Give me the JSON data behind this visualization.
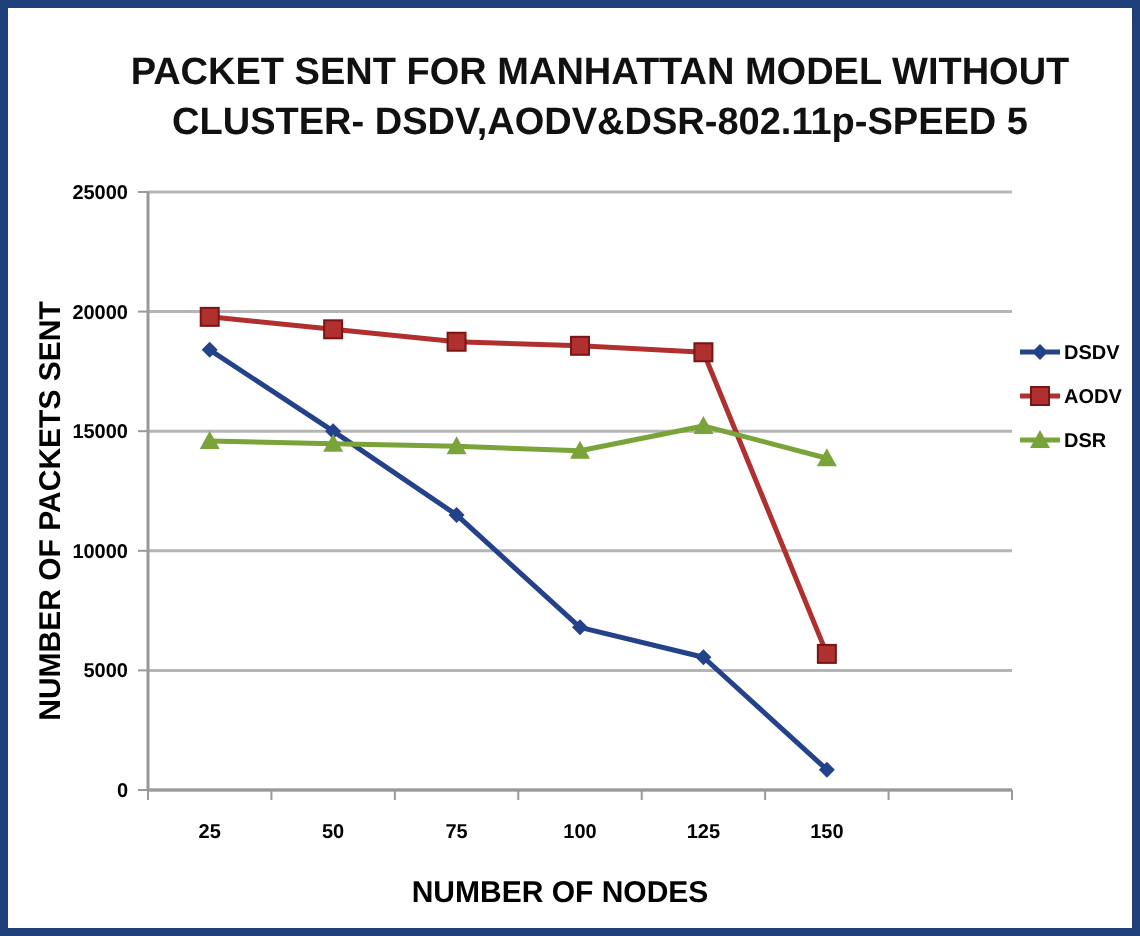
{
  "chart_data": {
    "type": "line",
    "title": "PACKET SENT FOR MANHATTAN MODEL WITHOUT CLUSTER- DSDV,AODV&DSR-802.11p-SPEED 5",
    "xlabel": "NUMBER OF NODES",
    "ylabel": "NUMBER OF PACKETS SENT",
    "categories": [
      "25",
      "50",
      "75",
      "100",
      "125",
      "150",
      null
    ],
    "series": [
      {
        "name": "DSDV",
        "color": "#23428a",
        "marker": "diamond",
        "values": [
          18400,
          15000,
          11500,
          6800,
          5550,
          850,
          null
        ]
      },
      {
        "name": "AODV",
        "color": "#b03030",
        "marker": "square",
        "values": [
          19780,
          19260,
          18740,
          18570,
          18300,
          5690,
          null
        ]
      },
      {
        "name": "DSR",
        "color": "#7aa33a",
        "marker": "triangle",
        "values": [
          14590,
          14480,
          14370,
          14180,
          15220,
          13870,
          null
        ]
      }
    ],
    "ylim": [
      0,
      25000
    ],
    "yticks": [
      0,
      5000,
      10000,
      15000,
      20000,
      25000
    ],
    "grid": "y",
    "legend": "right"
  }
}
